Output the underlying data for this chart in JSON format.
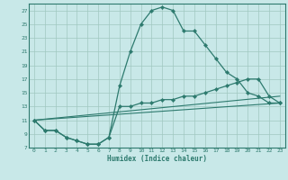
{
  "title": "",
  "xlabel": "Humidex (Indice chaleur)",
  "bg_color": "#c8e8e8",
  "grid_color": "#a0c8c0",
  "line_color": "#2d7a6e",
  "xlim": [
    -0.5,
    23.5
  ],
  "ylim": [
    7,
    28
  ],
  "xticks": [
    0,
    1,
    2,
    3,
    4,
    5,
    6,
    7,
    8,
    9,
    10,
    11,
    12,
    13,
    14,
    15,
    16,
    17,
    18,
    19,
    20,
    21,
    22,
    23
  ],
  "yticks": [
    7,
    9,
    11,
    13,
    15,
    17,
    19,
    21,
    23,
    25,
    27
  ],
  "line1_x": [
    0,
    1,
    2,
    3,
    4,
    5,
    6,
    7,
    8,
    9,
    10,
    11,
    12,
    13,
    14,
    15,
    16,
    17,
    18,
    19,
    20,
    21,
    22,
    23
  ],
  "line1_y": [
    11,
    9.5,
    9.5,
    8.5,
    8,
    7.5,
    7.5,
    8.5,
    16,
    21,
    25,
    27,
    27.5,
    27,
    24,
    24,
    22,
    20,
    18,
    17,
    15,
    14.5,
    13.5,
    13.5
  ],
  "line2_x": [
    0,
    1,
    2,
    3,
    4,
    5,
    6,
    7,
    8,
    9,
    10,
    11,
    12,
    13,
    14,
    15,
    16,
    17,
    18,
    19,
    20,
    21,
    22,
    23
  ],
  "line2_y": [
    11,
    9.5,
    9.5,
    8.5,
    8,
    7.5,
    7.5,
    8.5,
    13,
    13,
    13.5,
    13.5,
    14,
    14,
    14.5,
    14.5,
    15,
    15.5,
    16,
    16.5,
    17,
    17,
    14.5,
    13.5
  ],
  "line3_x": [
    0,
    23
  ],
  "line3_y": [
    11,
    13.5
  ],
  "line4_x": [
    0,
    23
  ],
  "line4_y": [
    11,
    14.5
  ]
}
